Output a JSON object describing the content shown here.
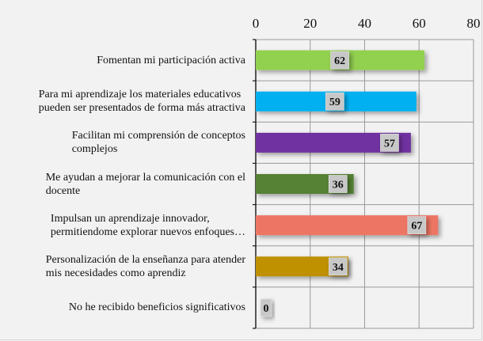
{
  "chart_data": {
    "type": "bar",
    "orientation": "horizontal",
    "categories": [
      "Fomentan mi participación activa",
      "Para mi aprendizaje los materiales educativos pueden ser presentados de forma más atractiva",
      "Facilitan mi comprensión de conceptos complejos",
      "Me ayudan a mejorar la comunicación con el docente",
      "Impulsan un aprendizaje innovador, permitiendome explorar nuevos enfoques…",
      "Personalización de la enseñanza para atender mis necesidades como aprendiz",
      "No he recibido beneficios significativos"
    ],
    "category_lines": [
      [
        "Fomentan mi participación activa"
      ],
      [
        "Para mi aprendizaje los materiales educativos",
        "pueden ser presentados de forma más atractiva"
      ],
      [
        "Facilitan mi comprensión de conceptos",
        "complejos"
      ],
      [
        "Me ayudan a mejorar la comunicación con el",
        "docente"
      ],
      [
        "Impulsan un aprendizaje innovador,",
        "permitiendome explorar nuevos enfoques…"
      ],
      [
        "Personalización de la enseñanza para atender",
        "mis necesidades como aprendiz"
      ],
      [
        "No he recibido beneficios significativos"
      ]
    ],
    "values": [
      62,
      59,
      57,
      36,
      67,
      34,
      0
    ],
    "data_labels": [
      "62",
      "59",
      "57",
      "36",
      "67",
      "34",
      "0"
    ],
    "colors": [
      "#92d050",
      "#00b0f0",
      "#7030a0",
      "#548235",
      "#ed7464",
      "#bf9000",
      "#bf9000"
    ],
    "xlim": [
      0,
      80
    ],
    "x_ticks": [
      "0",
      "20",
      "40",
      "60",
      "80"
    ],
    "x_axis_position": "top",
    "grid": true,
    "title": "",
    "xlabel": "",
    "ylabel": ""
  }
}
